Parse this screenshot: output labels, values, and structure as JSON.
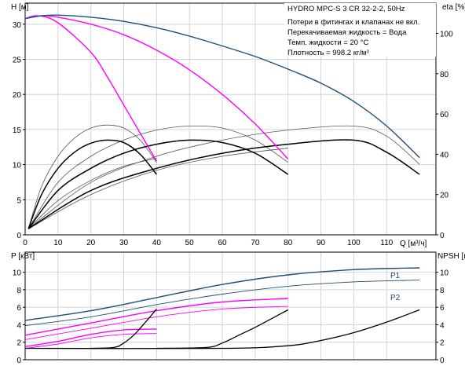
{
  "title": "HYDRO MPC-S 3 CR 32-2-2, 50Hz",
  "conditions": [
    "Потери в фитингах и клапанах не вкл.",
    "Перекачиваемая жидкость = Вода",
    "Темп. жидкости = 20 °C",
    "Плотность = 998.2 кг/м³"
  ],
  "colors": {
    "pump_curve_all": "#1f4e79",
    "pump_curve_partial": "#ff00ff",
    "efficiency": "#000000",
    "grid": "#d4d4d4"
  },
  "chart_data": [
    {
      "type": "line",
      "name": "Q-H / eta",
      "xlabel": "Q [м³/ч]",
      "ylabel_left": "H [м]",
      "ylabel_right": "eta [%]",
      "xlim": [
        0,
        125
      ],
      "ylim": [
        0,
        33
      ],
      "y2lim": [
        0,
        115
      ],
      "xticks": [
        0,
        10,
        20,
        30,
        40,
        50,
        60,
        70,
        80,
        90,
        100,
        110
      ],
      "yticks": [
        0,
        5,
        10,
        15,
        20,
        25,
        30
      ],
      "y2ticks": [
        0,
        20,
        40,
        60,
        80,
        100
      ],
      "grid": true,
      "series": [
        {
          "key": "h3",
          "axis": "left",
          "color": "#1f4e79",
          "width": 1.4,
          "x": [
            0,
            5,
            10,
            20,
            30,
            40,
            50,
            60,
            70,
            80,
            90,
            100,
            110,
            120
          ],
          "y": [
            30.8,
            31.2,
            31.3,
            31.0,
            30.4,
            29.5,
            28.3,
            26.9,
            25.4,
            23.6,
            21.6,
            19.0,
            15.5,
            11.0
          ]
        },
        {
          "key": "h2",
          "axis": "left",
          "color": "#ff00ff",
          "width": 1.4,
          "x": [
            0,
            5,
            10,
            20,
            30,
            40,
            50,
            60,
            70,
            80
          ],
          "y": [
            30.8,
            31.2,
            31.0,
            30.0,
            28.5,
            26.3,
            23.5,
            20.0,
            15.8,
            10.8
          ]
        },
        {
          "key": "h1",
          "axis": "left",
          "color": "#ff00ff",
          "width": 1.4,
          "x": [
            0,
            4,
            10,
            20,
            25,
            30,
            35,
            40
          ],
          "y": [
            30.8,
            31.2,
            30.2,
            26.0,
            22.5,
            18.5,
            14.5,
            10.5
          ]
        },
        {
          "key": "eta1",
          "axis": "right",
          "color": "#000000",
          "width": 1.5,
          "x": [
            1,
            5,
            10,
            15,
            20,
            25,
            30,
            35,
            40
          ],
          "y": [
            3,
            20,
            33,
            41,
            45.5,
            47,
            45.8,
            40,
            30
          ]
        },
        {
          "key": "eta2",
          "axis": "right",
          "color": "#000000",
          "width": 1.5,
          "x": [
            1,
            10,
            20,
            30,
            40,
            50,
            60,
            70,
            80
          ],
          "y": [
            3,
            22,
            33,
            40.5,
            45,
            47,
            45.8,
            40.5,
            30
          ]
        },
        {
          "key": "eta3",
          "axis": "right",
          "color": "#000000",
          "width": 1.5,
          "x": [
            1,
            20,
            40,
            60,
            80,
            100,
            110,
            120
          ],
          "y": [
            3,
            22,
            33,
            40.5,
            45,
            47,
            41,
            30
          ]
        },
        {
          "key": "eta1b",
          "axis": "right",
          "color": "#555555",
          "width": 0.8,
          "x": [
            1,
            5,
            10,
            15,
            20,
            25,
            30,
            35,
            40
          ],
          "y": [
            3,
            24,
            39,
            48,
            53,
            54.5,
            53,
            47,
            36
          ]
        },
        {
          "key": "eta2b",
          "axis": "right",
          "color": "#555555",
          "width": 0.8,
          "x": [
            1,
            10,
            20,
            30,
            40,
            50,
            60,
            70,
            80
          ],
          "y": [
            3,
            26,
            39,
            47,
            52,
            54,
            53,
            47,
            36
          ]
        },
        {
          "key": "eta3b",
          "axis": "right",
          "color": "#555555",
          "width": 0.8,
          "x": [
            1,
            20,
            40,
            60,
            80,
            100,
            110,
            120
          ],
          "y": [
            3,
            26,
            39,
            47,
            52,
            54,
            49,
            35
          ]
        },
        {
          "key": "eta1c",
          "axis": "right",
          "color": "#555555",
          "width": 0.8,
          "x": [
            1,
            10,
            20,
            30,
            40
          ],
          "y": [
            3,
            17,
            27,
            34,
            38
          ]
        },
        {
          "key": "eta2c",
          "axis": "right",
          "color": "#555555",
          "width": 0.8,
          "x": [
            1,
            20,
            40,
            60,
            80
          ],
          "y": [
            3,
            20,
            32,
            39,
            43
          ]
        }
      ]
    },
    {
      "type": "line",
      "name": "P / NPSH",
      "ylabel_left": "P [кВт]",
      "ylabel_right": "NPSH [м]",
      "xlim": [
        0,
        125
      ],
      "ylim": [
        0,
        12.3
      ],
      "yticks": [
        0,
        2,
        4,
        6,
        8,
        10
      ],
      "y2ticks": [
        0,
        2,
        4,
        6,
        8,
        10
      ],
      "grid": true,
      "series": [
        {
          "key": "P1",
          "label": "P1",
          "color": "#1f4e79",
          "width": 1.4,
          "x": [
            0,
            20,
            40,
            60,
            80,
            100,
            120
          ],
          "y": [
            4.5,
            5.6,
            7.1,
            8.6,
            9.7,
            10.3,
            10.5
          ]
        },
        {
          "key": "P2",
          "label": "P2",
          "color": "#1f4e79",
          "width": 0.9,
          "x": [
            0,
            20,
            40,
            60,
            80,
            100,
            120
          ],
          "y": [
            3.9,
            4.9,
            6.3,
            7.5,
            8.4,
            8.9,
            9.1
          ]
        },
        {
          "key": "P1m2",
          "color": "#ff00ff",
          "width": 1.4,
          "x": [
            0,
            20,
            40,
            60,
            80
          ],
          "y": [
            2.8,
            4.2,
            5.6,
            6.6,
            7.0
          ]
        },
        {
          "key": "P2m2",
          "color": "#ff00ff",
          "width": 0.9,
          "x": [
            0,
            20,
            40,
            60,
            80
          ],
          "y": [
            2.3,
            3.6,
            4.9,
            5.8,
            6.1
          ]
        },
        {
          "key": "P1m1",
          "color": "#ff00ff",
          "width": 1.4,
          "x": [
            0,
            10,
            20,
            30,
            40
          ],
          "y": [
            1.5,
            2.1,
            2.9,
            3.4,
            3.5
          ]
        },
        {
          "key": "P2m1",
          "color": "#ff00ff",
          "width": 0.9,
          "x": [
            0,
            10,
            20,
            30,
            40
          ],
          "y": [
            1.3,
            1.8,
            2.5,
            2.9,
            3.0
          ]
        },
        {
          "key": "npsh3",
          "color": "#000000",
          "width": 1.3,
          "x": [
            0,
            60,
            80,
            90,
            100,
            110,
            120
          ],
          "y": [
            1.3,
            1.3,
            1.6,
            2.2,
            3.1,
            4.3,
            5.7
          ]
        },
        {
          "key": "npsh2",
          "color": "#000000",
          "width": 1.3,
          "x": [
            40,
            55,
            60,
            65,
            70,
            75,
            80
          ],
          "y": [
            1.3,
            1.4,
            1.9,
            2.8,
            3.7,
            4.7,
            5.7
          ]
        },
        {
          "key": "npsh1",
          "color": "#000000",
          "width": 1.3,
          "x": [
            20,
            27,
            30,
            33,
            35,
            38,
            40
          ],
          "y": [
            1.3,
            1.4,
            1.9,
            2.8,
            3.6,
            4.9,
            5.8
          ]
        }
      ]
    }
  ]
}
